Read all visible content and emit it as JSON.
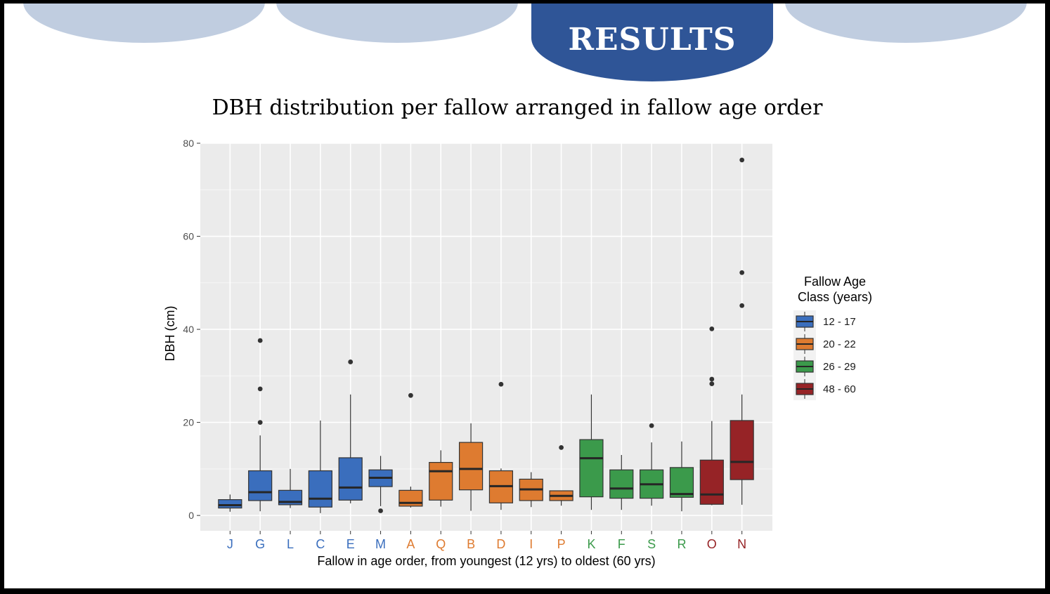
{
  "tabs": [
    {
      "label": "",
      "active": false
    },
    {
      "label": "",
      "active": false
    },
    {
      "label": "RESULTS",
      "active": true
    },
    {
      "label": "",
      "active": false
    }
  ],
  "slide_title": "DBH distribution per fallow arranged in fallow age order",
  "chart_data": {
    "type": "boxplot",
    "title": "",
    "xlabel": "Fallow in age order, from youngest (12 yrs) to oldest (60 yrs)",
    "ylabel": "DBH (cm)",
    "ylim": [
      -3.3,
      80
    ],
    "yticks": [
      0,
      20,
      40,
      60,
      80
    ],
    "grid": true,
    "legend": {
      "title_line1": "Fallow Age",
      "title_line2": "Class (years)",
      "position": "right",
      "entries": [
        {
          "label": "12 - 17",
          "color": "#3a6ebd"
        },
        {
          "label": "20 - 22",
          "color": "#de7b30"
        },
        {
          "label": "26 - 29",
          "color": "#3b9a4b"
        },
        {
          "label": "48 - 60",
          "color": "#962326"
        }
      ]
    },
    "boxes": [
      {
        "label": "J",
        "class": 0,
        "lo": 0.8,
        "q1": 1.6,
        "med": 2.2,
        "q3": 3.4,
        "hi": 4.5,
        "outliers": []
      },
      {
        "label": "G",
        "class": 0,
        "lo": 0.9,
        "q1": 3.2,
        "med": 5.0,
        "q3": 9.6,
        "hi": 17.2,
        "outliers": [
          20.0,
          27.2,
          37.6
        ]
      },
      {
        "label": "L",
        "class": 0,
        "lo": 1.6,
        "q1": 2.3,
        "med": 2.9,
        "q3": 5.4,
        "hi": 10.0,
        "outliers": []
      },
      {
        "label": "C",
        "class": 0,
        "lo": 0.5,
        "q1": 1.8,
        "med": 3.6,
        "q3": 9.6,
        "hi": 20.4,
        "outliers": []
      },
      {
        "label": "E",
        "class": 0,
        "lo": 2.6,
        "q1": 3.3,
        "med": 6.0,
        "q3": 12.4,
        "hi": 26.0,
        "outliers": [
          33.0
        ]
      },
      {
        "label": "M",
        "class": 0,
        "lo": 2.0,
        "q1": 6.2,
        "med": 8.1,
        "q3": 9.8,
        "hi": 12.8,
        "outliers": [
          1.0
        ]
      },
      {
        "label": "A",
        "class": 1,
        "lo": 1.7,
        "q1": 2.0,
        "med": 2.7,
        "q3": 5.4,
        "hi": 6.2,
        "outliers": [
          25.8
        ]
      },
      {
        "label": "Q",
        "class": 1,
        "lo": 1.9,
        "q1": 3.3,
        "med": 9.5,
        "q3": 11.4,
        "hi": 14.0,
        "outliers": []
      },
      {
        "label": "B",
        "class": 1,
        "lo": 1.0,
        "q1": 5.5,
        "med": 10.0,
        "q3": 15.7,
        "hi": 19.8,
        "outliers": []
      },
      {
        "label": "D",
        "class": 1,
        "lo": 1.2,
        "q1": 2.7,
        "med": 6.3,
        "q3": 9.6,
        "hi": 10.1,
        "outliers": [
          28.2
        ]
      },
      {
        "label": "I",
        "class": 1,
        "lo": 1.8,
        "q1": 3.2,
        "med": 5.6,
        "q3": 7.8,
        "hi": 9.3,
        "outliers": []
      },
      {
        "label": "P",
        "class": 1,
        "lo": 2.1,
        "q1": 3.2,
        "med": 4.2,
        "q3": 5.3,
        "hi": 5.3,
        "outliers": [
          14.6
        ]
      },
      {
        "label": "K",
        "class": 2,
        "lo": 1.2,
        "q1": 4.0,
        "med": 12.3,
        "q3": 16.3,
        "hi": 26.0,
        "outliers": []
      },
      {
        "label": "F",
        "class": 2,
        "lo": 1.2,
        "q1": 3.7,
        "med": 5.8,
        "q3": 9.8,
        "hi": 13.0,
        "outliers": []
      },
      {
        "label": "S",
        "class": 2,
        "lo": 2.1,
        "q1": 3.7,
        "med": 6.7,
        "q3": 9.8,
        "hi": 15.7,
        "outliers": [
          19.3
        ]
      },
      {
        "label": "R",
        "class": 2,
        "lo": 0.9,
        "q1": 3.9,
        "med": 4.6,
        "q3": 10.3,
        "hi": 15.9,
        "outliers": []
      },
      {
        "label": "O",
        "class": 3,
        "lo": 2.2,
        "q1": 2.4,
        "med": 4.5,
        "q3": 11.9,
        "hi": 20.3,
        "outliers": [
          28.3,
          29.3,
          40.1
        ]
      },
      {
        "label": "N",
        "class": 3,
        "lo": 2.3,
        "q1": 7.7,
        "med": 11.5,
        "q3": 20.4,
        "hi": 26.0,
        "outliers": [
          45.1,
          52.2,
          76.4
        ]
      }
    ]
  }
}
